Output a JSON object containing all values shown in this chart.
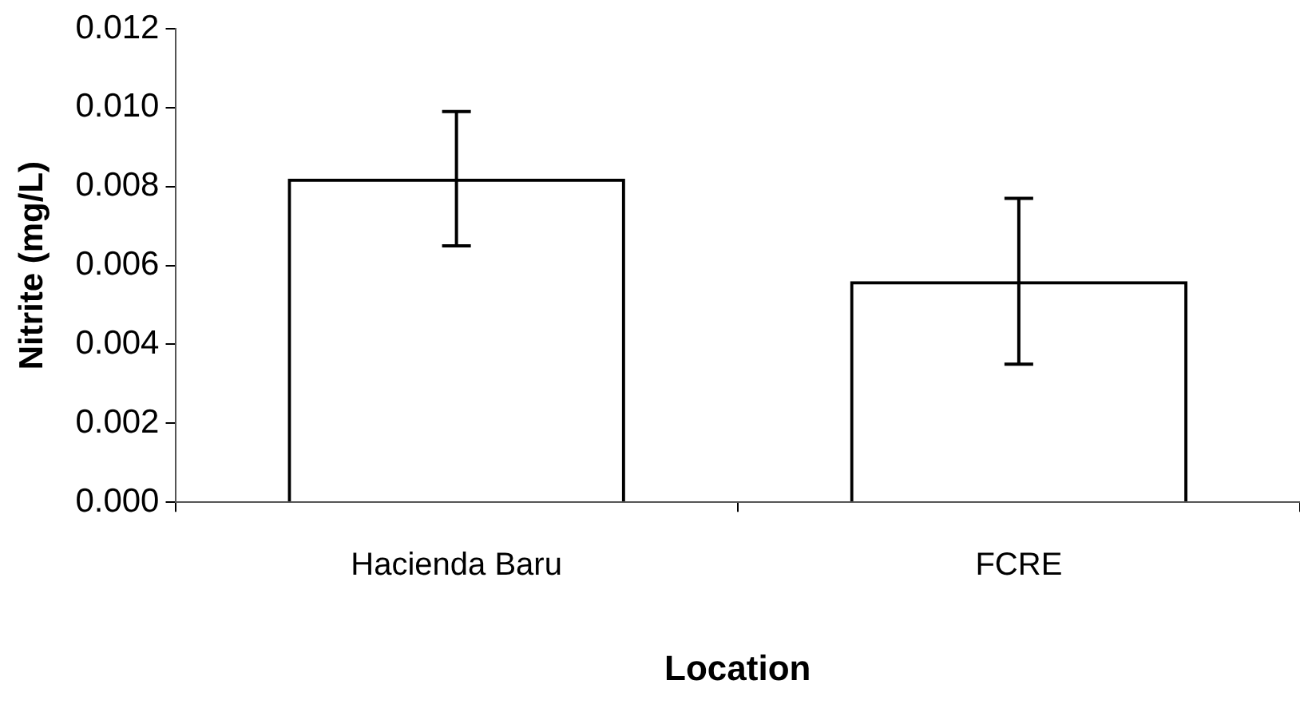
{
  "chart_data": {
    "type": "bar",
    "xlabel": "Location",
    "ylabel": "Nitrite (mg/L)",
    "categories": [
      "Hacienda Baru",
      "FCRE"
    ],
    "values": [
      0.0082,
      0.0056
    ],
    "errors": [
      0.0017,
      0.0021
    ],
    "color": "#000000",
    "ylim": [
      0,
      0.012
    ],
    "yticks": [
      {
        "value": 0,
        "label": "0.000"
      },
      {
        "value": 0.002,
        "label": "0.002"
      },
      {
        "value": 0.004,
        "label": "0.004"
      },
      {
        "value": 0.006,
        "label": "0.006"
      },
      {
        "value": 0.008,
        "label": "0.008"
      },
      {
        "value": 0.01,
        "label": "0.010"
      },
      {
        "value": 0.012,
        "label": "0.012"
      }
    ],
    "grid": false,
    "legend": false
  }
}
